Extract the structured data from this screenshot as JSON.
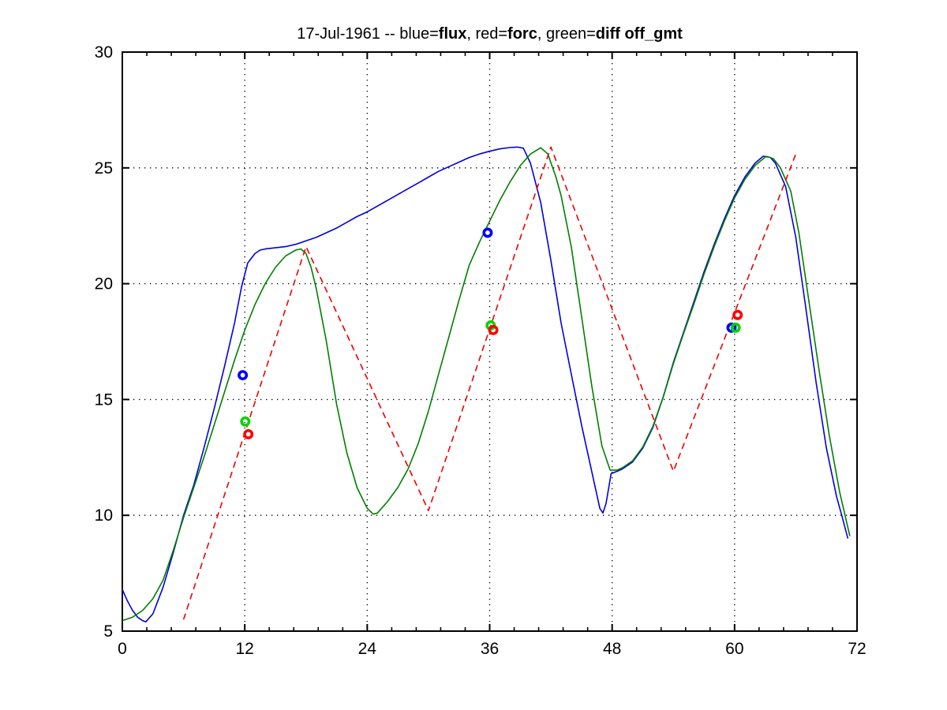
{
  "figure": {
    "background": "#ffffff"
  },
  "chart_data": {
    "type": "line",
    "title": "17-Jul-1961 -- blue=flux, red=forc, green=diff off_gmt",
    "title_segments": [
      {
        "text": "17-Jul-1961 -- blue=",
        "bold": false
      },
      {
        "text": "flux",
        "bold": true
      },
      {
        "text": ", red=",
        "bold": false
      },
      {
        "text": "forc",
        "bold": true
      },
      {
        "text": ", green=",
        "bold": false
      },
      {
        "text": "diff",
        "bold": true
      },
      {
        "text": " ",
        "bold": false
      },
      {
        "text": "off_gmt",
        "bold": true
      }
    ],
    "xlabel": "",
    "ylabel": "",
    "x_axis": {
      "min": 0,
      "max": 72,
      "major_ticks": [
        0,
        12,
        24,
        36,
        48,
        60,
        72
      ],
      "tick_labels": [
        "0",
        "12",
        "24",
        "36",
        "48",
        "60",
        "72"
      ],
      "minor_tick_step": 2.4
    },
    "y_axis": {
      "min": 5,
      "max": 30,
      "major_ticks": [
        5,
        10,
        15,
        20,
        25,
        30
      ],
      "tick_labels": [
        "5",
        "10",
        "15",
        "20",
        "25",
        "30"
      ]
    },
    "grid": {
      "style": "dotted",
      "color": "#000000",
      "x_lines": [
        12,
        24,
        36,
        48,
        60
      ],
      "y_lines": [
        10,
        15,
        20,
        25
      ]
    },
    "axis_color": "#000000",
    "series": [
      {
        "name": "flux",
        "color": "#0000E0",
        "style": "solid",
        "points": [
          [
            0,
            6.8
          ],
          [
            0.5,
            6.3
          ],
          [
            1,
            5.9
          ],
          [
            1.5,
            5.6
          ],
          [
            2,
            5.45
          ],
          [
            2.3,
            5.4
          ],
          [
            3,
            5.75
          ],
          [
            4,
            6.9
          ],
          [
            5,
            8.4
          ],
          [
            6,
            10.0
          ],
          [
            7,
            11.3
          ],
          [
            8,
            12.9
          ],
          [
            9,
            14.6
          ],
          [
            10,
            16.4
          ],
          [
            11,
            18.3
          ],
          [
            11.7,
            19.9
          ],
          [
            12.3,
            20.9
          ],
          [
            13,
            21.3
          ],
          [
            13.5,
            21.45
          ],
          [
            14,
            21.5
          ],
          [
            15,
            21.55
          ],
          [
            16,
            21.6
          ],
          [
            17,
            21.7
          ],
          [
            18,
            21.85
          ],
          [
            19,
            22.0
          ],
          [
            20,
            22.2
          ],
          [
            21,
            22.4
          ],
          [
            22,
            22.65
          ],
          [
            23,
            22.9
          ],
          [
            24,
            23.1
          ],
          [
            25,
            23.35
          ],
          [
            26,
            23.6
          ],
          [
            27,
            23.85
          ],
          [
            28,
            24.1
          ],
          [
            29,
            24.35
          ],
          [
            30,
            24.6
          ],
          [
            31,
            24.85
          ],
          [
            32,
            25.05
          ],
          [
            33,
            25.25
          ],
          [
            34,
            25.45
          ],
          [
            35,
            25.6
          ],
          [
            36,
            25.72
          ],
          [
            37,
            25.82
          ],
          [
            38,
            25.88
          ],
          [
            38.7,
            25.9
          ],
          [
            39.3,
            25.85
          ],
          [
            40,
            25.2
          ],
          [
            41,
            23.5
          ],
          [
            42,
            21.0
          ],
          [
            43,
            18.3
          ],
          [
            44,
            16.1
          ],
          [
            45,
            13.9
          ],
          [
            46,
            11.9
          ],
          [
            46.8,
            10.3
          ],
          [
            47.1,
            10.1
          ],
          [
            47.4,
            10.5
          ],
          [
            47.9,
            11.8
          ],
          [
            48.5,
            11.9
          ],
          [
            49,
            12.0
          ],
          [
            50,
            12.3
          ],
          [
            51,
            12.9
          ],
          [
            52,
            13.8
          ],
          [
            53,
            15.1
          ],
          [
            54,
            16.6
          ],
          [
            55,
            17.9
          ],
          [
            56,
            19.2
          ],
          [
            57,
            20.5
          ],
          [
            58,
            21.7
          ],
          [
            59,
            22.8
          ],
          [
            60,
            23.8
          ],
          [
            61,
            24.6
          ],
          [
            62,
            25.2
          ],
          [
            62.8,
            25.5
          ],
          [
            63.5,
            25.45
          ],
          [
            64,
            25.2
          ],
          [
            65,
            24.2
          ],
          [
            66,
            22.0
          ],
          [
            67,
            18.9
          ],
          [
            68,
            15.7
          ],
          [
            69,
            12.9
          ],
          [
            70,
            10.8
          ],
          [
            70.5,
            10.0
          ],
          [
            71.1,
            9.0
          ]
        ]
      },
      {
        "name": "diff",
        "color": "#007F00",
        "style": "solid",
        "points": [
          [
            0,
            5.45
          ],
          [
            1,
            5.6
          ],
          [
            2,
            5.9
          ],
          [
            3,
            6.4
          ],
          [
            4,
            7.2
          ],
          [
            5,
            8.5
          ],
          [
            6,
            9.9
          ],
          [
            7,
            11.2
          ],
          [
            8,
            12.5
          ],
          [
            9,
            13.9
          ],
          [
            10,
            15.3
          ],
          [
            11,
            16.7
          ],
          [
            12,
            18.0
          ],
          [
            13,
            19.1
          ],
          [
            14,
            20.0
          ],
          [
            15,
            20.7
          ],
          [
            16,
            21.2
          ],
          [
            17,
            21.45
          ],
          [
            17.5,
            21.5
          ],
          [
            18,
            21.3
          ],
          [
            18.5,
            20.7
          ],
          [
            19,
            19.8
          ],
          [
            20,
            17.5
          ],
          [
            21,
            14.8
          ],
          [
            22,
            12.7
          ],
          [
            23,
            11.2
          ],
          [
            24,
            10.3
          ],
          [
            24.6,
            10.05
          ],
          [
            25,
            10.1
          ],
          [
            26,
            10.6
          ],
          [
            27,
            11.2
          ],
          [
            28,
            12.0
          ],
          [
            29,
            13.1
          ],
          [
            30,
            14.5
          ],
          [
            31,
            16.1
          ],
          [
            32,
            17.7
          ],
          [
            33,
            19.3
          ],
          [
            34,
            20.8
          ],
          [
            35,
            21.8
          ],
          [
            36,
            22.7
          ],
          [
            37,
            23.6
          ],
          [
            38,
            24.4
          ],
          [
            39,
            25.1
          ],
          [
            40,
            25.6
          ],
          [
            41,
            25.87
          ],
          [
            41.7,
            25.6
          ],
          [
            42.5,
            24.6
          ],
          [
            43,
            23.8
          ],
          [
            44,
            21.6
          ],
          [
            45,
            18.6
          ],
          [
            46,
            15.6
          ],
          [
            47,
            13.0
          ],
          [
            47.8,
            11.95
          ],
          [
            48.5,
            11.95
          ],
          [
            49,
            12.05
          ],
          [
            50,
            12.35
          ],
          [
            51,
            12.95
          ],
          [
            52,
            13.85
          ],
          [
            53,
            15.1
          ],
          [
            54,
            16.55
          ],
          [
            55,
            17.85
          ],
          [
            56,
            19.1
          ],
          [
            57,
            20.4
          ],
          [
            58,
            21.6
          ],
          [
            59,
            22.7
          ],
          [
            60,
            23.7
          ],
          [
            61,
            24.5
          ],
          [
            62,
            25.1
          ],
          [
            63.1,
            25.5
          ],
          [
            63.8,
            25.4
          ],
          [
            64.5,
            25.0
          ],
          [
            65.5,
            24.0
          ],
          [
            66.3,
            22.2
          ],
          [
            67.3,
            19.2
          ],
          [
            68.3,
            16.2
          ],
          [
            69.3,
            13.4
          ],
          [
            70.3,
            11.0
          ],
          [
            71.3,
            9.1
          ]
        ]
      },
      {
        "name": "forc",
        "color": "#EE0000",
        "style": "dashed",
        "points": [
          [
            6,
            5.5
          ],
          [
            18,
            21.6
          ],
          [
            30,
            10.2
          ],
          [
            42,
            25.9
          ],
          [
            54,
            11.9
          ],
          [
            66,
            25.6
          ]
        ]
      }
    ],
    "markers": [
      {
        "name": "flux-obs",
        "color": "#0000FF",
        "points": [
          [
            11.8,
            16.05
          ],
          [
            35.8,
            22.2
          ],
          [
            59.7,
            18.1
          ]
        ]
      },
      {
        "name": "diff-obs",
        "color": "#00D500",
        "points": [
          [
            12.05,
            14.05
          ],
          [
            36.1,
            18.2
          ],
          [
            60.1,
            18.1
          ]
        ]
      },
      {
        "name": "forc-obs",
        "color": "#FF0000",
        "points": [
          [
            12.35,
            13.5
          ],
          [
            36.35,
            18.0
          ],
          [
            60.3,
            18.65
          ]
        ]
      }
    ],
    "legend": "none"
  }
}
